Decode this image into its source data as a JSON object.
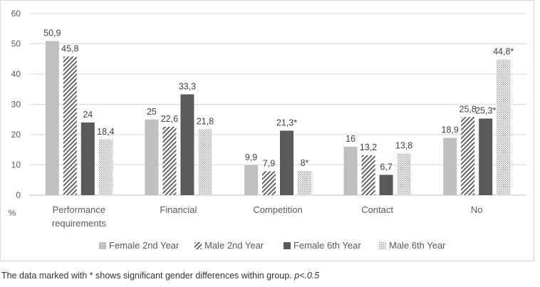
{
  "chart_data": {
    "type": "bar",
    "title": "",
    "xlabel": "",
    "ylabel": "%",
    "ylim": [
      0,
      60
    ],
    "yticks": [
      0,
      10,
      20,
      30,
      40,
      50,
      60
    ],
    "grid": true,
    "legend_position": "bottom",
    "categories": [
      [
        "Performance",
        "requirements"
      ],
      [
        "Financial"
      ],
      [
        "Competition"
      ],
      [
        "Contact"
      ],
      [
        "No"
      ]
    ],
    "series": [
      {
        "name": "Female 2nd Year",
        "values": [
          50.9,
          25,
          9.9,
          16,
          18.9
        ],
        "labels": [
          "50,9",
          "25",
          "9,9",
          "16",
          "18,9"
        ],
        "pattern": "solid-light",
        "color": "#bfbfbf"
      },
      {
        "name": "Male 2nd Year",
        "values": [
          45.8,
          22.6,
          7.9,
          13.2,
          25.8
        ],
        "labels": [
          "45,8",
          "22,6",
          "7,9",
          "13,2",
          "25,8"
        ],
        "pattern": "diagonal-stripes",
        "color": "#595959"
      },
      {
        "name": "Female 6th Year",
        "values": [
          24,
          33.3,
          21.3,
          6.7,
          25.3
        ],
        "labels": [
          "24",
          "33,3",
          "21,3*",
          "6,7",
          "25,3*"
        ],
        "pattern": "solid-dark",
        "color": "#595959"
      },
      {
        "name": "Male 6th Year",
        "values": [
          18.4,
          21.8,
          8,
          13.8,
          44.8
        ],
        "labels": [
          "18,4",
          "21,8",
          "8*",
          "13,8",
          "44,8*"
        ],
        "pattern": "dotted",
        "color": "#a6a6a6"
      }
    ]
  },
  "footnote": {
    "text": "The data marked with * shows significant gender differences within group. ",
    "pvalue": "p<.0.5"
  }
}
